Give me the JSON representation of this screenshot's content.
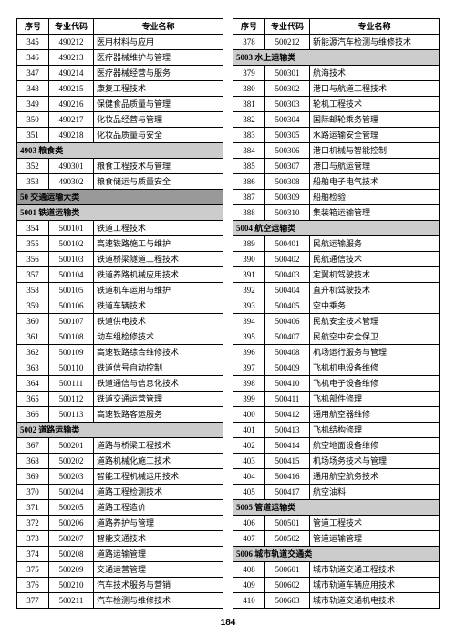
{
  "pageNumber": "184",
  "headers": {
    "seq": "序号",
    "code": "专业代码",
    "name": "专业名称"
  },
  "leftRows": [
    {
      "t": "d",
      "seq": "345",
      "code": "490212",
      "name": "医用材料与应用"
    },
    {
      "t": "d",
      "seq": "346",
      "code": "490213",
      "name": "医疗器械维护与管理"
    },
    {
      "t": "d",
      "seq": "347",
      "code": "490214",
      "name": "医疗器械经营与服务"
    },
    {
      "t": "d",
      "seq": "348",
      "code": "490215",
      "name": "康复工程技术"
    },
    {
      "t": "d",
      "seq": "349",
      "code": "490216",
      "name": "保健食品质量与管理"
    },
    {
      "t": "d",
      "seq": "350",
      "code": "490217",
      "name": "化妆品经营与管理"
    },
    {
      "t": "d",
      "seq": "351",
      "code": "490218",
      "name": "化妆品质量与安全"
    },
    {
      "t": "s",
      "label": "4903 粮食类"
    },
    {
      "t": "d",
      "seq": "352",
      "code": "490301",
      "name": "粮食工程技术与管理"
    },
    {
      "t": "d",
      "seq": "353",
      "code": "490302",
      "name": "粮食储运与质量安全"
    },
    {
      "t": "m",
      "label": "50 交通运输大类"
    },
    {
      "t": "s",
      "label": "5001 铁道运输类"
    },
    {
      "t": "d",
      "seq": "354",
      "code": "500101",
      "name": "铁道工程技术"
    },
    {
      "t": "d",
      "seq": "355",
      "code": "500102",
      "name": "高速铁路施工与维护"
    },
    {
      "t": "d",
      "seq": "356",
      "code": "500103",
      "name": "铁道桥梁隧道工程技术"
    },
    {
      "t": "d",
      "seq": "357",
      "code": "500104",
      "name": "铁道养路机械应用技术"
    },
    {
      "t": "d",
      "seq": "358",
      "code": "500105",
      "name": "铁道机车运用与维护"
    },
    {
      "t": "d",
      "seq": "359",
      "code": "500106",
      "name": "铁道车辆技术"
    },
    {
      "t": "d",
      "seq": "360",
      "code": "500107",
      "name": "铁道供电技术"
    },
    {
      "t": "d",
      "seq": "361",
      "code": "500108",
      "name": "动车组检修技术"
    },
    {
      "t": "d",
      "seq": "362",
      "code": "500109",
      "name": "高速铁路综合维修技术"
    },
    {
      "t": "d",
      "seq": "363",
      "code": "500110",
      "name": "铁道信号自动控制"
    },
    {
      "t": "d",
      "seq": "364",
      "code": "500111",
      "name": "铁道通信与信息化技术"
    },
    {
      "t": "d",
      "seq": "365",
      "code": "500112",
      "name": "铁道交通运营管理"
    },
    {
      "t": "d",
      "seq": "366",
      "code": "500113",
      "name": "高速铁路客运服务"
    },
    {
      "t": "s",
      "label": "5002 道路运输类"
    },
    {
      "t": "d",
      "seq": "367",
      "code": "500201",
      "name": "道路与桥梁工程技术"
    },
    {
      "t": "d",
      "seq": "368",
      "code": "500202",
      "name": "道路机械化施工技术"
    },
    {
      "t": "d",
      "seq": "369",
      "code": "500203",
      "name": "智能工程机械运用技术"
    },
    {
      "t": "d",
      "seq": "370",
      "code": "500204",
      "name": "道路工程检测技术"
    },
    {
      "t": "d",
      "seq": "371",
      "code": "500205",
      "name": "道路工程造价"
    },
    {
      "t": "d",
      "seq": "372",
      "code": "500206",
      "name": "道路养护与管理"
    },
    {
      "t": "d",
      "seq": "373",
      "code": "500207",
      "name": "智能交通技术"
    },
    {
      "t": "d",
      "seq": "374",
      "code": "500208",
      "name": "道路运输管理"
    },
    {
      "t": "d",
      "seq": "375",
      "code": "500209",
      "name": "交通运营管理"
    },
    {
      "t": "d",
      "seq": "376",
      "code": "500210",
      "name": "汽车技术服务与营销"
    },
    {
      "t": "d",
      "seq": "377",
      "code": "500211",
      "name": "汽车检测与维修技术"
    }
  ],
  "rightRows": [
    {
      "t": "d",
      "seq": "378",
      "code": "500212",
      "name": "新能源汽车检测与维修技术"
    },
    {
      "t": "s",
      "label": "5003 水上运输类"
    },
    {
      "t": "d",
      "seq": "379",
      "code": "500301",
      "name": "航海技术"
    },
    {
      "t": "d",
      "seq": "380",
      "code": "500302",
      "name": "港口与航道工程技术"
    },
    {
      "t": "d",
      "seq": "381",
      "code": "500303",
      "name": "轮机工程技术"
    },
    {
      "t": "d",
      "seq": "382",
      "code": "500304",
      "name": "国际邮轮乘务管理"
    },
    {
      "t": "d",
      "seq": "383",
      "code": "500305",
      "name": "水路运输安全管理"
    },
    {
      "t": "d",
      "seq": "384",
      "code": "500306",
      "name": "港口机械与智能控制"
    },
    {
      "t": "d",
      "seq": "385",
      "code": "500307",
      "name": "港口与航运管理"
    },
    {
      "t": "d",
      "seq": "386",
      "code": "500308",
      "name": "船舶电子电气技术"
    },
    {
      "t": "d",
      "seq": "387",
      "code": "500309",
      "name": "船舶检验"
    },
    {
      "t": "d",
      "seq": "388",
      "code": "500310",
      "name": "集装箱运输管理"
    },
    {
      "t": "s",
      "label": "5004 航空运输类"
    },
    {
      "t": "d",
      "seq": "389",
      "code": "500401",
      "name": "民航运输服务"
    },
    {
      "t": "d",
      "seq": "390",
      "code": "500402",
      "name": "民航通信技术"
    },
    {
      "t": "d",
      "seq": "391",
      "code": "500403",
      "name": "定翼机驾驶技术"
    },
    {
      "t": "d",
      "seq": "392",
      "code": "500404",
      "name": "直升机驾驶技术"
    },
    {
      "t": "d",
      "seq": "393",
      "code": "500405",
      "name": "空中乘务"
    },
    {
      "t": "d",
      "seq": "394",
      "code": "500406",
      "name": "民航安全技术管理"
    },
    {
      "t": "d",
      "seq": "395",
      "code": "500407",
      "name": "民航空中安全保卫"
    },
    {
      "t": "d",
      "seq": "396",
      "code": "500408",
      "name": "机场运行服务与管理"
    },
    {
      "t": "d",
      "seq": "397",
      "code": "500409",
      "name": "飞机机电设备维修"
    },
    {
      "t": "d",
      "seq": "398",
      "code": "500410",
      "name": "飞机电子设备维修"
    },
    {
      "t": "d",
      "seq": "399",
      "code": "500411",
      "name": "飞机部件修理"
    },
    {
      "t": "d",
      "seq": "400",
      "code": "500412",
      "name": "通用航空器维修"
    },
    {
      "t": "d",
      "seq": "401",
      "code": "500413",
      "name": "飞机结构修理"
    },
    {
      "t": "d",
      "seq": "402",
      "code": "500414",
      "name": "航空地面设备维修"
    },
    {
      "t": "d",
      "seq": "403",
      "code": "500415",
      "name": "机场场务技术与管理"
    },
    {
      "t": "d",
      "seq": "404",
      "code": "500416",
      "name": "通用航空航务技术"
    },
    {
      "t": "d",
      "seq": "405",
      "code": "500417",
      "name": "航空油料"
    },
    {
      "t": "s",
      "label": "5005 管道运输类"
    },
    {
      "t": "d",
      "seq": "406",
      "code": "500501",
      "name": "管道工程技术"
    },
    {
      "t": "d",
      "seq": "407",
      "code": "500502",
      "name": "管道运输管理"
    },
    {
      "t": "s",
      "label": "5006 城市轨道交通类"
    },
    {
      "t": "d",
      "seq": "408",
      "code": "500601",
      "name": "城市轨道交通工程技术"
    },
    {
      "t": "d",
      "seq": "409",
      "code": "500602",
      "name": "城市轨道车辆应用技术"
    },
    {
      "t": "d",
      "seq": "410",
      "code": "500603",
      "name": "城市轨道交通机电技术"
    }
  ]
}
